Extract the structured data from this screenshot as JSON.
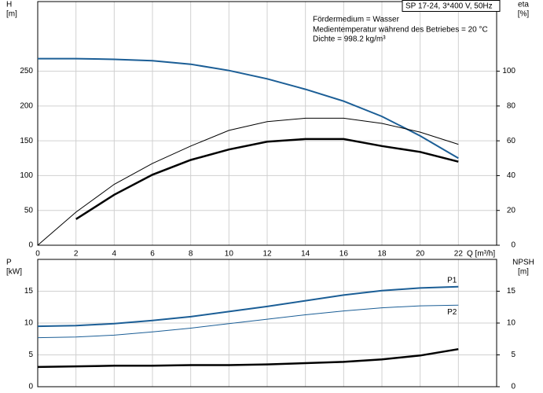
{
  "chart_data": [
    {
      "type": "line",
      "title": "SP 17-24, 3*400 V, 50Hz",
      "annotations": [
        "Fördermedium = Wasser",
        "Medientemperatur während des Betriebes = 20 °C",
        "Dichte = 998.2 kg/m³"
      ],
      "ylabel": "H",
      "yunit": "[m]",
      "y2label": "eta",
      "y2unit": "[%]",
      "xlabel": "Q [m³/h]",
      "x": [
        0,
        2,
        4,
        6,
        8,
        10,
        12,
        14,
        16,
        18,
        20,
        22
      ],
      "xlim": [
        0,
        24
      ],
      "xticks": [
        0,
        2,
        4,
        6,
        8,
        10,
        12,
        14,
        16,
        18,
        20,
        22
      ],
      "ylim": [
        0,
        350
      ],
      "yticks": [
        0,
        50,
        100,
        150,
        200,
        250
      ],
      "y2lim": [
        0,
        140
      ],
      "y2ticks": [
        0,
        20,
        40,
        60,
        80,
        100
      ],
      "grid": true,
      "series": [
        {
          "color": "#1b5e96",
          "axis": "y",
          "line_width": 2,
          "values": [
            268,
            268,
            267,
            265,
            260,
            251,
            239,
            224,
            207,
            185,
            157,
            125
          ]
        },
        {
          "color": "#000000",
          "axis": "y2",
          "line_width": 1,
          "values": [
            0,
            19,
            35,
            47,
            57,
            66,
            71,
            73,
            73,
            70,
            65,
            58
          ]
        },
        {
          "color": "#000000",
          "axis": "y2",
          "line_width": 2.5,
          "values": [
            null,
            15,
            29,
            40.5,
            49,
            55,
            59.5,
            61,
            61,
            57,
            53.6,
            48
          ]
        }
      ]
    },
    {
      "type": "line",
      "ylabel": "P",
      "yunit": "[kW]",
      "y2label": "NPSH",
      "y2unit": "[m]",
      "x": [
        0,
        2,
        4,
        6,
        8,
        10,
        12,
        14,
        16,
        18,
        20,
        22
      ],
      "xlim": [
        0,
        24
      ],
      "xticks": [
        0,
        2,
        4,
        6,
        8,
        10,
        12,
        14,
        16,
        18,
        20,
        22
      ],
      "xtick_labels": false,
      "ylim": [
        0,
        20
      ],
      "yticks": [
        0,
        5,
        10,
        15
      ],
      "y2lim": [
        0,
        20
      ],
      "y2ticks": [
        0,
        5,
        10,
        15
      ],
      "grid": true,
      "series": [
        {
          "name": "P1",
          "color": "#1b5e96",
          "axis": "y",
          "line_width": 2,
          "values": [
            9.5,
            9.6,
            9.9,
            10.4,
            11.0,
            11.8,
            12.6,
            13.5,
            14.4,
            15.1,
            15.5,
            15.7
          ]
        },
        {
          "name": "P2",
          "color": "#1b5e96",
          "axis": "y",
          "line_width": 1,
          "values": [
            7.7,
            7.8,
            8.1,
            8.6,
            9.2,
            9.9,
            10.6,
            11.3,
            11.9,
            12.4,
            12.7,
            12.8
          ]
        },
        {
          "color": "#000000",
          "axis": "y2",
          "line_width": 2.5,
          "values": [
            3.1,
            3.2,
            3.3,
            3.3,
            3.4,
            3.4,
            3.5,
            3.7,
            3.9,
            4.3,
            4.9,
            5.9
          ]
        }
      ]
    }
  ]
}
